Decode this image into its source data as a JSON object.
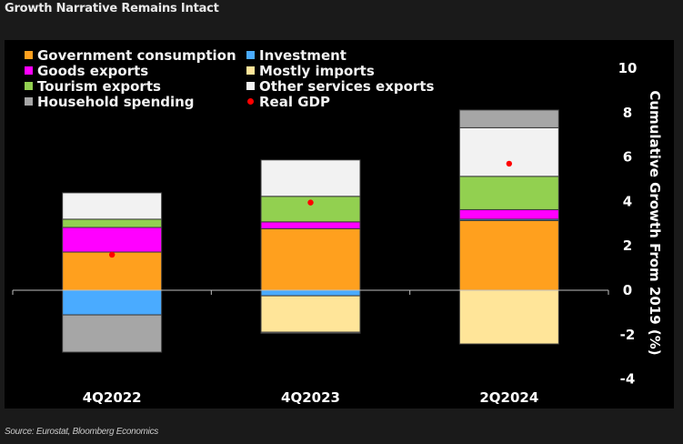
{
  "header": {
    "title": "Growth Narrative Remains Intact"
  },
  "footer": {
    "source": "Source: Eurostat, Bloomberg Economics"
  },
  "chart_data": {
    "type": "bar",
    "stacked": true,
    "title": "Growth Narrative Remains Intact",
    "xlabel": "",
    "ylabel": "Cumulative Growth From 2019 (%)",
    "ylim": [
      -4,
      10
    ],
    "yticks": [
      10,
      8,
      6,
      4,
      2,
      0,
      -2,
      -4
    ],
    "y_axis_side": "right",
    "grid": false,
    "legend_position": "top-left",
    "categories": [
      "4Q2022",
      "4Q2023",
      "2Q2024"
    ],
    "series": [
      {
        "name": "Government consumption",
        "color": "#ffa01e",
        "values": [
          1.72,
          2.77,
          3.14
        ]
      },
      {
        "name": "Investment",
        "color": "#4aabff",
        "values": [
          -1.11,
          -0.25,
          0.06
        ]
      },
      {
        "name": "Goods exports",
        "color": "#ff00ff",
        "values": [
          1.11,
          0.31,
          0.43
        ]
      },
      {
        "name": "Mostly imports",
        "color": "#ffe599",
        "values": [
          0.0,
          -1.64,
          -2.42
        ]
      },
      {
        "name": "Tourism exports",
        "color": "#92d050",
        "values": [
          0.37,
          1.15,
          1.5
        ]
      },
      {
        "name": "Other services exports",
        "color": "#f2f2f2",
        "values": [
          1.19,
          1.64,
          2.19
        ]
      },
      {
        "name": "Household spending",
        "color": "#a6a6a6",
        "values": [
          -1.68,
          -0.05,
          0.8
        ]
      }
    ],
    "overlay": {
      "name": "Real GDP",
      "type": "scatter",
      "color": "#ff0000",
      "values": [
        1.6,
        3.95,
        5.7
      ]
    },
    "legend": [
      {
        "label": "Government consumption",
        "color": "#ffa01e",
        "shape": "square"
      },
      {
        "label": "Investment",
        "color": "#4aabff",
        "shape": "square"
      },
      {
        "label": "Goods exports",
        "color": "#ff00ff",
        "shape": "square"
      },
      {
        "label": "Mostly imports",
        "color": "#ffe599",
        "shape": "square"
      },
      {
        "label": "Tourism exports",
        "color": "#92d050",
        "shape": "square"
      },
      {
        "label": "Other services exports",
        "color": "#f2f2f2",
        "shape": "square"
      },
      {
        "label": "Household spending",
        "color": "#a6a6a6",
        "shape": "square"
      },
      {
        "label": "Real GDP",
        "color": "#ff0000",
        "shape": "dot"
      }
    ]
  }
}
